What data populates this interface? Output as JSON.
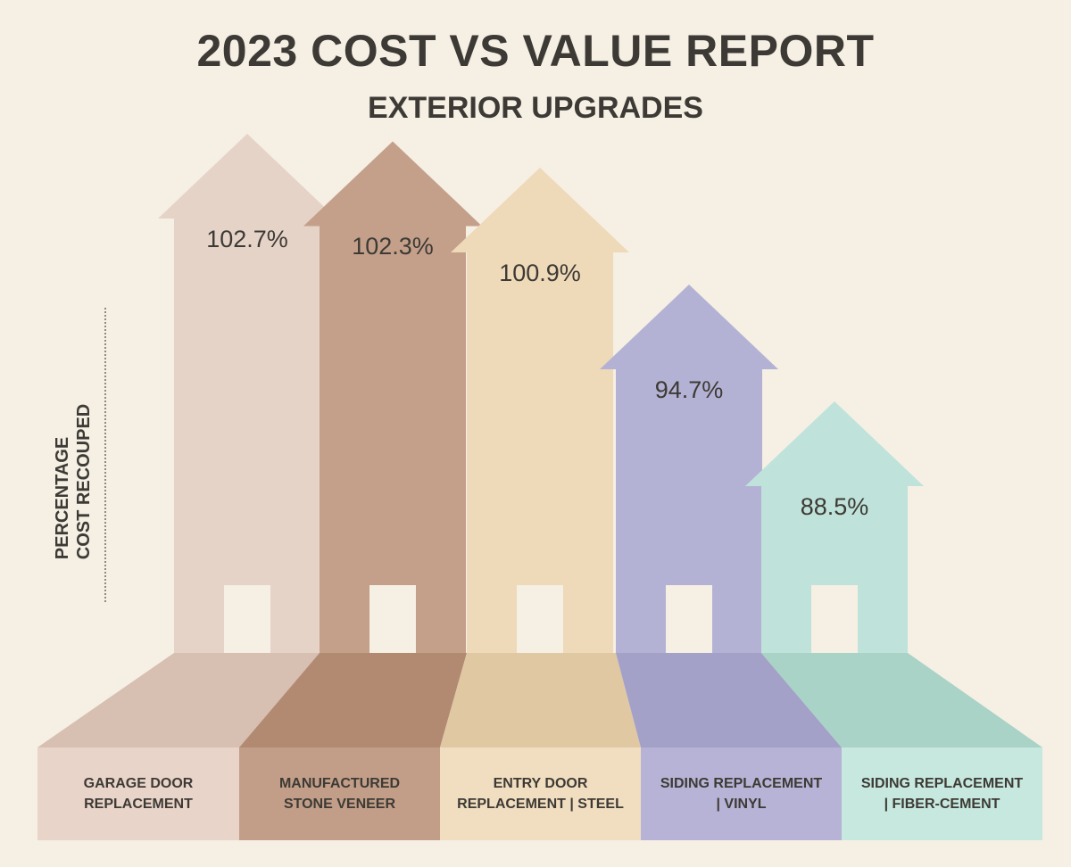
{
  "header": {
    "title": "2023 COST VS VALUE REPORT",
    "subtitle": "EXTERIOR UPGRADES"
  },
  "chart_data": {
    "type": "bar",
    "title": "2023 COST VS VALUE REPORT",
    "subtitle": "EXTERIOR UPGRADES",
    "ylabel": "PERCENTAGE COST RECOUPED",
    "ylabel_lines": [
      "PERCENTAGE",
      "COST RECOUPED"
    ],
    "xlabel": "",
    "categories": [
      "GARAGE DOOR REPLACEMENT",
      "MANUFACTURED STONE VENEER",
      "ENTRY DOOR REPLACEMENT | STEEL",
      "SIDING REPLACEMENT | VINYL",
      "SIDING REPLACEMENT | FIBER-CEMENT"
    ],
    "category_lines": [
      [
        "GARAGE DOOR",
        "REPLACEMENT"
      ],
      [
        "MANUFACTURED",
        "STONE VENEER"
      ],
      [
        "ENTRY DOOR",
        "REPLACEMENT | STEEL"
      ],
      [
        "SIDING REPLACEMENT",
        "| VINYL"
      ],
      [
        "SIDING REPLACEMENT",
        "| FIBER-CEMENT"
      ]
    ],
    "values": [
      102.7,
      102.3,
      100.9,
      94.7,
      88.5
    ],
    "value_labels": [
      "102.7%",
      "102.3%",
      "100.9%",
      "94.7%",
      "88.5%"
    ],
    "colors": {
      "arrow": [
        "#e6d3c8",
        "#c4a08a",
        "#eed9b8",
        "#b4b2d4",
        "#bfe3da"
      ],
      "floor": [
        "#d7bfb2",
        "#b28a72",
        "#e0c8a3",
        "#a3a1c7",
        "#a8d3c6"
      ],
      "label_box": [
        "#e9d4c9",
        "#c29e88",
        "#f1dec0",
        "#b6b3d6",
        "#c6e8df"
      ],
      "door": "#f5efe4"
    },
    "grid": false,
    "legend": "none"
  }
}
